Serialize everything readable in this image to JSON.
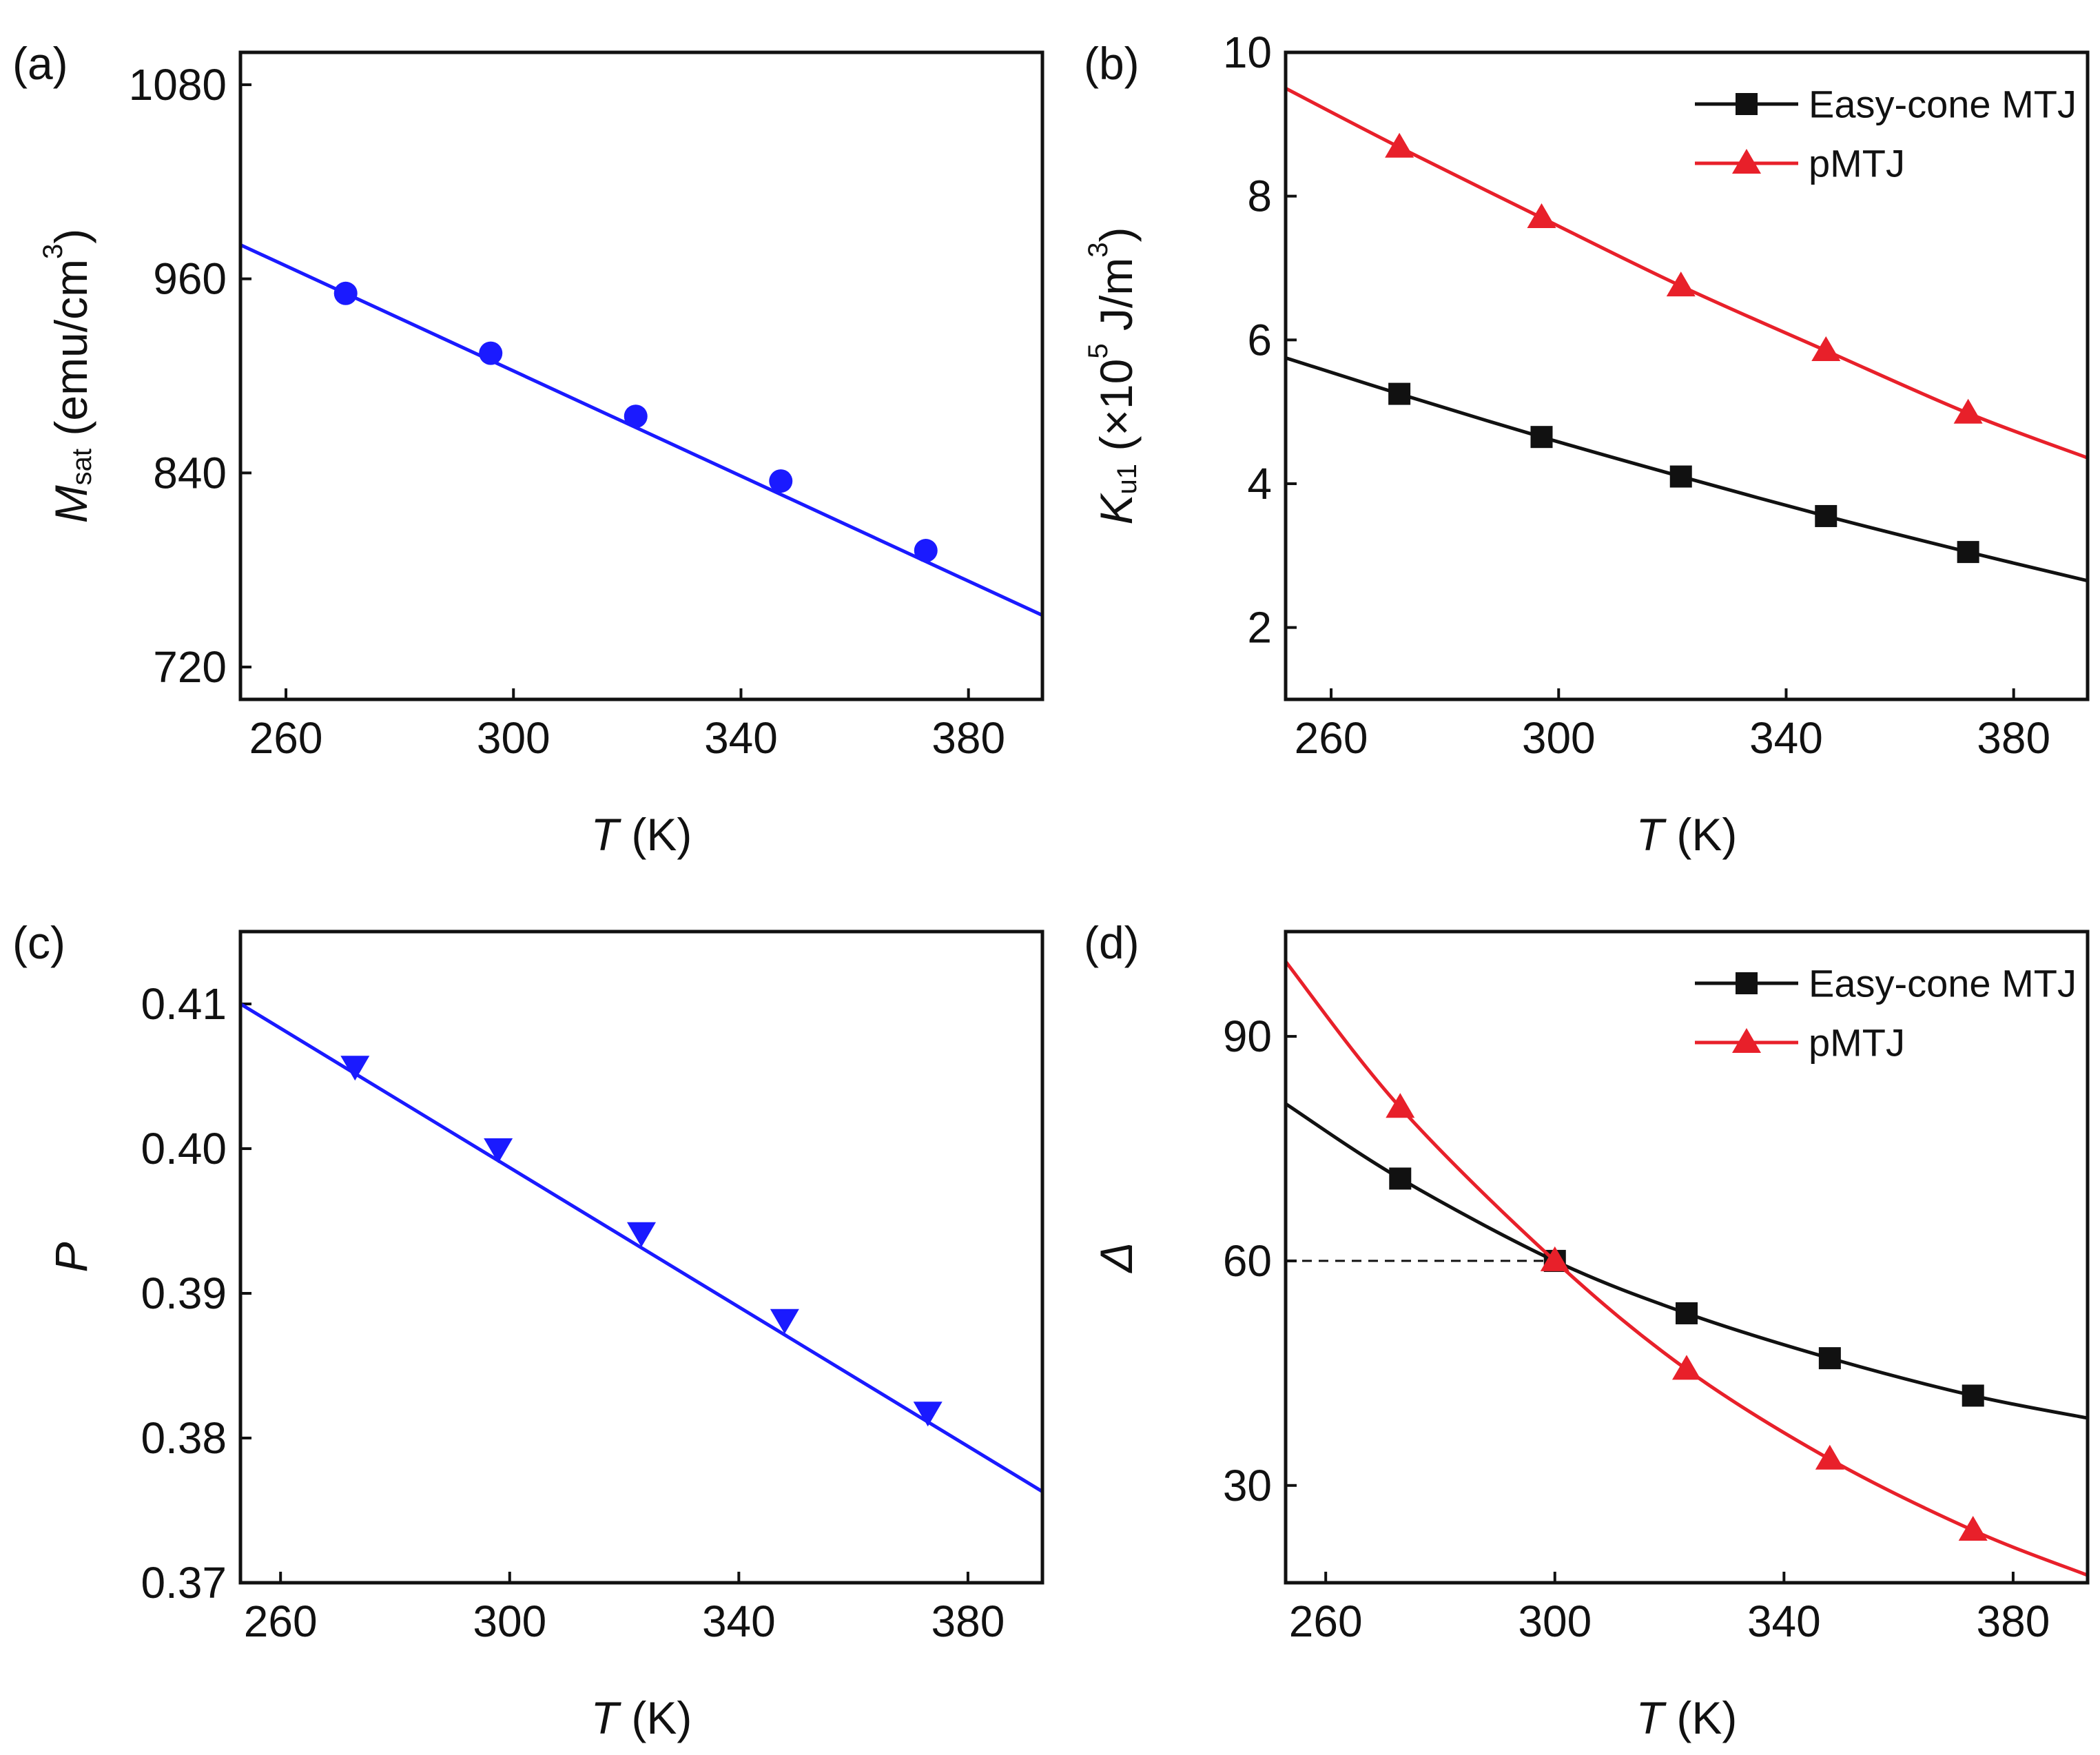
{
  "chart_data": [
    {
      "panel_label": "(a)",
      "type": "line",
      "title": "",
      "xlabel": {
        "symbol": "T",
        "unit": " (K)"
      },
      "ylabel": {
        "symbol": "M",
        "sub": "sat",
        "unit": " (emu/cm",
        "sup": "3",
        "close": ")"
      },
      "xlim": [
        252,
        393
      ],
      "ylim": [
        700,
        1100
      ],
      "xticks": [
        "260",
        "300",
        "340",
        "380"
      ],
      "yticks": [
        "720",
        "840",
        "960",
        "1080"
      ],
      "series": [
        {
          "name": "Msat",
          "color": "#1a1aff",
          "marker": "circle",
          "x": [
            270.5,
            296,
            321.5,
            347,
            372.5
          ],
          "y": [
            951,
            914,
            875,
            835,
            792
          ],
          "fit": [
            [
              252,
              981
            ],
            [
              393,
              752
            ]
          ]
        }
      ]
    },
    {
      "panel_label": "(b)",
      "type": "line",
      "title": "",
      "xlabel": {
        "symbol": "T",
        "unit": " (K)"
      },
      "ylabel": {
        "symbol": "K",
        "sub": "u1",
        "unit": " (×10",
        "sup": "5",
        "close": " J/m",
        "sup2": "3",
        "close2": ")"
      },
      "xlim": [
        252,
        393
      ],
      "ylim": [
        1,
        10
      ],
      "xticks": [
        "260",
        "300",
        "340",
        "380"
      ],
      "yticks": [
        "2",
        "4",
        "6",
        "8",
        "10"
      ],
      "legend": [
        "Easy-cone MTJ",
        "pMTJ"
      ],
      "series": [
        {
          "name": "Easy-cone MTJ",
          "color": "#111111",
          "marker": "square",
          "x": [
            272,
            297,
            321.5,
            347,
            372
          ],
          "y": [
            5.25,
            4.65,
            4.1,
            3.55,
            3.05
          ],
          "fit": [
            [
              252,
              5.75
            ],
            [
              272,
              5.25
            ],
            [
              297,
              4.65
            ],
            [
              321.5,
              4.1
            ],
            [
              347,
              3.55
            ],
            [
              372,
              3.05
            ],
            [
              393,
              2.65
            ]
          ]
        },
        {
          "name": "pMTJ",
          "color": "#e8202a",
          "marker": "triangle-up",
          "x": [
            272,
            297,
            321.5,
            347,
            372
          ],
          "y": [
            8.68,
            7.7,
            6.75,
            5.85,
            4.98
          ],
          "fit": [
            [
              252,
              9.5
            ],
            [
              272,
              8.68
            ],
            [
              297,
              7.7
            ],
            [
              321.5,
              6.75
            ],
            [
              347,
              5.85
            ],
            [
              372,
              4.98
            ],
            [
              393,
              4.36
            ]
          ]
        }
      ]
    },
    {
      "panel_label": "(c)",
      "type": "line",
      "title": "",
      "xlabel": {
        "symbol": "T",
        "unit": " (K)"
      },
      "ylabel": {
        "symbol": "P"
      },
      "xlim": [
        253,
        393
      ],
      "ylim": [
        0.37,
        0.415
      ],
      "xticks": [
        "260",
        "300",
        "340",
        "380"
      ],
      "yticks": [
        "0.37",
        "0.38",
        "0.39",
        "0.40",
        "0.41"
      ],
      "series": [
        {
          "name": "P",
          "color": "#1a1aff",
          "marker": "triangle-down",
          "x": [
            273,
            298,
            323,
            348,
            373
          ],
          "y": [
            0.4057,
            0.4,
            0.3942,
            0.3882,
            0.3818
          ],
          "fit": [
            [
              253,
              0.41
            ],
            [
              393,
              0.3763
            ]
          ]
        }
      ]
    },
    {
      "panel_label": "(d)",
      "type": "line",
      "title": "",
      "xlabel": {
        "symbol": "T",
        "unit": " (K)"
      },
      "ylabel": {
        "symbol": "Δ"
      },
      "xlim": [
        253,
        393
      ],
      "ylim": [
        17,
        104
      ],
      "xticks": [
        "260",
        "300",
        "340",
        "380"
      ],
      "yticks": [
        "30",
        "60",
        "90"
      ],
      "legend": [
        "Easy-cone MTJ",
        "pMTJ"
      ],
      "reference_line": {
        "y": 60,
        "x_from": 253,
        "x_to": 300,
        "style": "dashed"
      },
      "series": [
        {
          "name": "Easy-cone MTJ",
          "color": "#111111",
          "marker": "square",
          "x": [
            273,
            300,
            323,
            348,
            373
          ],
          "y": [
            71,
            60,
            53,
            47,
            42
          ],
          "fit": [
            [
              253,
              81
            ],
            [
              273,
              71
            ],
            [
              300,
              60
            ],
            [
              323,
              53
            ],
            [
              348,
              47
            ],
            [
              373,
              42
            ],
            [
              393,
              39
            ]
          ]
        },
        {
          "name": "pMTJ",
          "color": "#e8202a",
          "marker": "triangle-up",
          "x": [
            273,
            300,
            323,
            348,
            373
          ],
          "y": [
            80.5,
            60,
            45.5,
            33.5,
            24
          ],
          "fit": [
            [
              253,
              100
            ],
            [
              273,
              80.5
            ],
            [
              300,
              60
            ],
            [
              323,
              45.5
            ],
            [
              348,
              33.5
            ],
            [
              373,
              24
            ],
            [
              393,
              18
            ]
          ]
        }
      ]
    }
  ]
}
